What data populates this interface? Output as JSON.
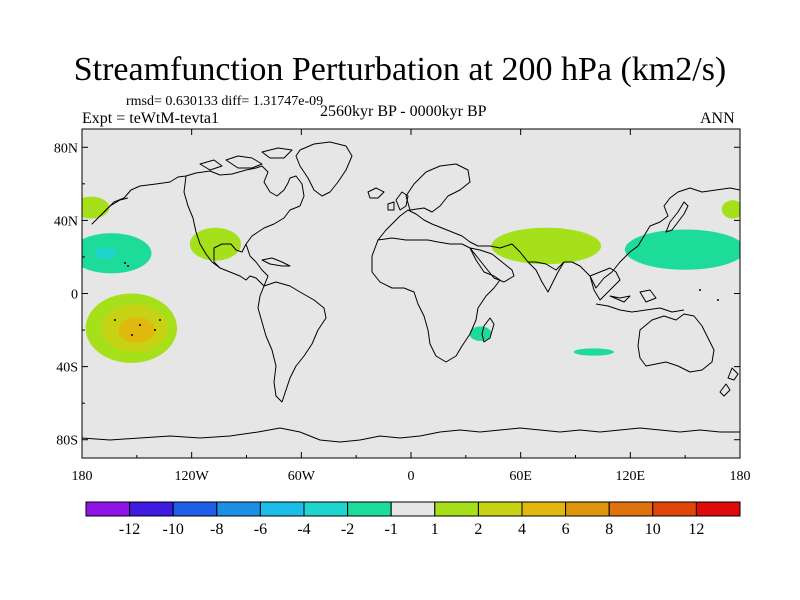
{
  "title": "Streamfunction Perturbation at 200 hPa (km2/s)",
  "stats": "rmsd= 0.630133 diff= 1.31747e-09",
  "subtitle": "2560kyr BP - 0000kyr BP",
  "experiment": "Expt = teWtM-tevta1",
  "season": "ANN",
  "colors": {
    "background": "#e6e6e6",
    "coast": "#000000",
    "level_colors": [
      "#8f14e6",
      "#3f1ae0",
      "#1f5ee6",
      "#1d8fe6",
      "#1cbde8",
      "#20d4d0",
      "#1ddc9a",
      "#e6e6e6",
      "#a6e01a",
      "#c8d214",
      "#e0b80e",
      "#e0960c",
      "#e0720e",
      "#e0460a",
      "#e00a0a"
    ]
  },
  "chart_data": {
    "type": "heatmap",
    "projection": "cylindrical-equidistant",
    "xlim": [
      -180,
      180
    ],
    "ylim": [
      -90,
      90
    ],
    "x_ticks": [
      {
        "value": -180,
        "label": "180"
      },
      {
        "value": -120,
        "label": "120W"
      },
      {
        "value": -60,
        "label": "60W"
      },
      {
        "value": 0,
        "label": "0"
      },
      {
        "value": 60,
        "label": "60E"
      },
      {
        "value": 120,
        "label": "120E"
      },
      {
        "value": 180,
        "label": "180"
      }
    ],
    "y_ticks": [
      {
        "value": 80,
        "label": "80N"
      },
      {
        "value": 40,
        "label": "40N"
      },
      {
        "value": 0,
        "label": "0"
      },
      {
        "value": -40,
        "label": "40S"
      },
      {
        "value": -80,
        "label": "80S"
      }
    ],
    "colorbar": {
      "labels": [
        "-12",
        "-10",
        "-8",
        "-6",
        "-4",
        "-2",
        "-1",
        "1",
        "2",
        "4",
        "6",
        "8",
        "10",
        "12"
      ],
      "n_boxes": 15
    },
    "anomalies": [
      {
        "name": "north-pacific-west-high",
        "lon": -175,
        "lat": 47,
        "rlon": 10,
        "rlat": 6,
        "level": 8
      },
      {
        "name": "north-pacific-east-high",
        "lon": 176,
        "lat": 46,
        "rlon": 6,
        "rlat": 5,
        "level": 8
      },
      {
        "name": "hawaii-trough",
        "lon": -164,
        "lat": 22,
        "rlon": 22,
        "rlat": 11,
        "level": 6
      },
      {
        "name": "hawaii-trough-core",
        "lon": -167,
        "lat": 22,
        "rlon": 6,
        "rlat": 3,
        "level": 5
      },
      {
        "name": "west-pacific-trough",
        "lon": 150,
        "lat": 24,
        "rlon": 33,
        "rlat": 11,
        "level": 6
      },
      {
        "name": "mexico-high",
        "lon": -107,
        "lat": 27,
        "rlon": 14,
        "rlat": 9,
        "level": 8
      },
      {
        "name": "asia-monsoon-high",
        "lon": 74,
        "lat": 26,
        "rlon": 30,
        "rlat": 10,
        "level": 8
      },
      {
        "name": "south-pacific-high",
        "lon": -153,
        "lat": -19,
        "rlon": 25,
        "rlat": 19,
        "level": 8
      },
      {
        "name": "south-pacific-high-mid",
        "lon": -151,
        "lat": -19,
        "rlon": 18,
        "rlat": 13,
        "level": 9
      },
      {
        "name": "south-pacific-high-core",
        "lon": -150,
        "lat": -20,
        "rlon": 10,
        "rlat": 7,
        "level": 10
      },
      {
        "name": "madagascar-trough",
        "lon": 38,
        "lat": -22,
        "rlon": 6,
        "rlat": 4,
        "level": 6
      },
      {
        "name": "indian-ocean-trough",
        "lon": 100,
        "lat": -32,
        "rlon": 11,
        "rlat": 2,
        "level": 6
      }
    ]
  }
}
